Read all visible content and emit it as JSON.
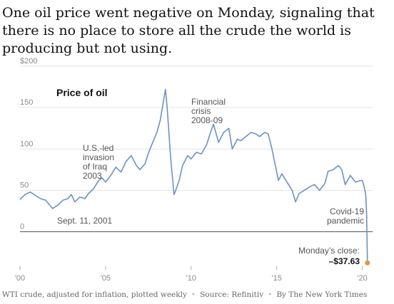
{
  "headline": "One oil price went negative on Monday, signaling that there is no place to store all the crude the world is producing but not using.",
  "footer": {
    "items": [
      "WTI crude, adjusted for inflation, plotted weekly",
      "Source: Refinitiv",
      "By The New York Times"
    ]
  },
  "chart_data": {
    "type": "line",
    "title": "Price of oil",
    "ylim": [
      -40,
      200
    ],
    "xlim": [
      2000.0,
      2020.6
    ],
    "yticks": [
      {
        "value": 200,
        "label": "$200"
      },
      {
        "value": 150,
        "label": "150"
      },
      {
        "value": 100,
        "label": "100"
      },
      {
        "value": 50,
        "label": "50"
      },
      {
        "value": 0,
        "label": "0"
      }
    ],
    "xticks": [
      {
        "value": 2000,
        "label": "'00"
      },
      {
        "value": 2005,
        "label": "'05"
      },
      {
        "value": 2010,
        "label": "'10"
      },
      {
        "value": 2015,
        "label": "'15"
      },
      {
        "value": 2020,
        "label": "'20"
      }
    ],
    "grid": true,
    "line_color": "#6b93c2",
    "marker_color": "#e8924a",
    "series": [
      {
        "x": [
          2000.0,
          2000.3,
          2000.6,
          2000.9,
          2001.2,
          2001.5,
          2001.7,
          2001.9,
          2002.2,
          2002.5,
          2002.8,
          2003.0,
          2003.2,
          2003.5,
          2003.8,
          2004.0,
          2004.3,
          2004.6,
          2004.8,
          2005.0,
          2005.3,
          2005.6,
          2005.9,
          2006.2,
          2006.5,
          2006.8,
          2007.0,
          2007.3,
          2007.5,
          2007.8,
          2008.0,
          2008.2,
          2008.4,
          2008.5,
          2008.6,
          2008.8,
          2009.0,
          2009.1,
          2009.3,
          2009.5,
          2009.8,
          2010.0,
          2010.3,
          2010.6,
          2010.9,
          2011.1,
          2011.3,
          2011.6,
          2011.9,
          2012.2,
          2012.4,
          2012.7,
          2012.9,
          2013.2,
          2013.5,
          2013.8,
          2014.0,
          2014.3,
          2014.5,
          2014.7,
          2014.9,
          2015.1,
          2015.3,
          2015.6,
          2015.9,
          2016.1,
          2016.3,
          2016.6,
          2016.9,
          2017.2,
          2017.5,
          2017.8,
          2018.0,
          2018.3,
          2018.6,
          2018.8,
          2019.0,
          2019.3,
          2019.6,
          2019.9,
          2020.0,
          2020.1,
          2020.2,
          2020.25,
          2020.3
        ],
        "y": [
          39,
          45,
          48,
          44,
          40,
          38,
          33,
          28,
          32,
          38,
          40,
          45,
          36,
          42,
          40,
          46,
          52,
          62,
          65,
          60,
          68,
          78,
          72,
          85,
          92,
          80,
          75,
          82,
          95,
          110,
          120,
          135,
          160,
          172,
          150,
          90,
          45,
          50,
          62,
          80,
          92,
          88,
          96,
          94,
          105,
          118,
          130,
          108,
          120,
          125,
          100,
          112,
          110,
          115,
          120,
          118,
          115,
          120,
          118,
          102,
          82,
          62,
          70,
          60,
          50,
          36,
          46,
          50,
          54,
          57,
          50,
          58,
          73,
          75,
          80,
          75,
          57,
          68,
          60,
          62,
          62,
          55,
          45,
          22,
          -37.63
        ]
      }
    ],
    "annotations": [
      {
        "x": 2001.7,
        "lines": [
          "Sept. 11, 2001"
        ]
      },
      {
        "x": 2003.2,
        "lines": [
          "U.S.-led",
          "invasion",
          "of Iraq",
          "2003"
        ]
      },
      {
        "x": 2008.6,
        "lines": [
          "Financial",
          "crisis",
          "2008-09"
        ]
      },
      {
        "x": 2020.2,
        "lines": [
          "Covid-19",
          "pandemic"
        ]
      }
    ],
    "last_value": {
      "label": "Monday’s close:",
      "value_label": "–$37.63",
      "x": 2020.3,
      "y": -37.63
    }
  }
}
